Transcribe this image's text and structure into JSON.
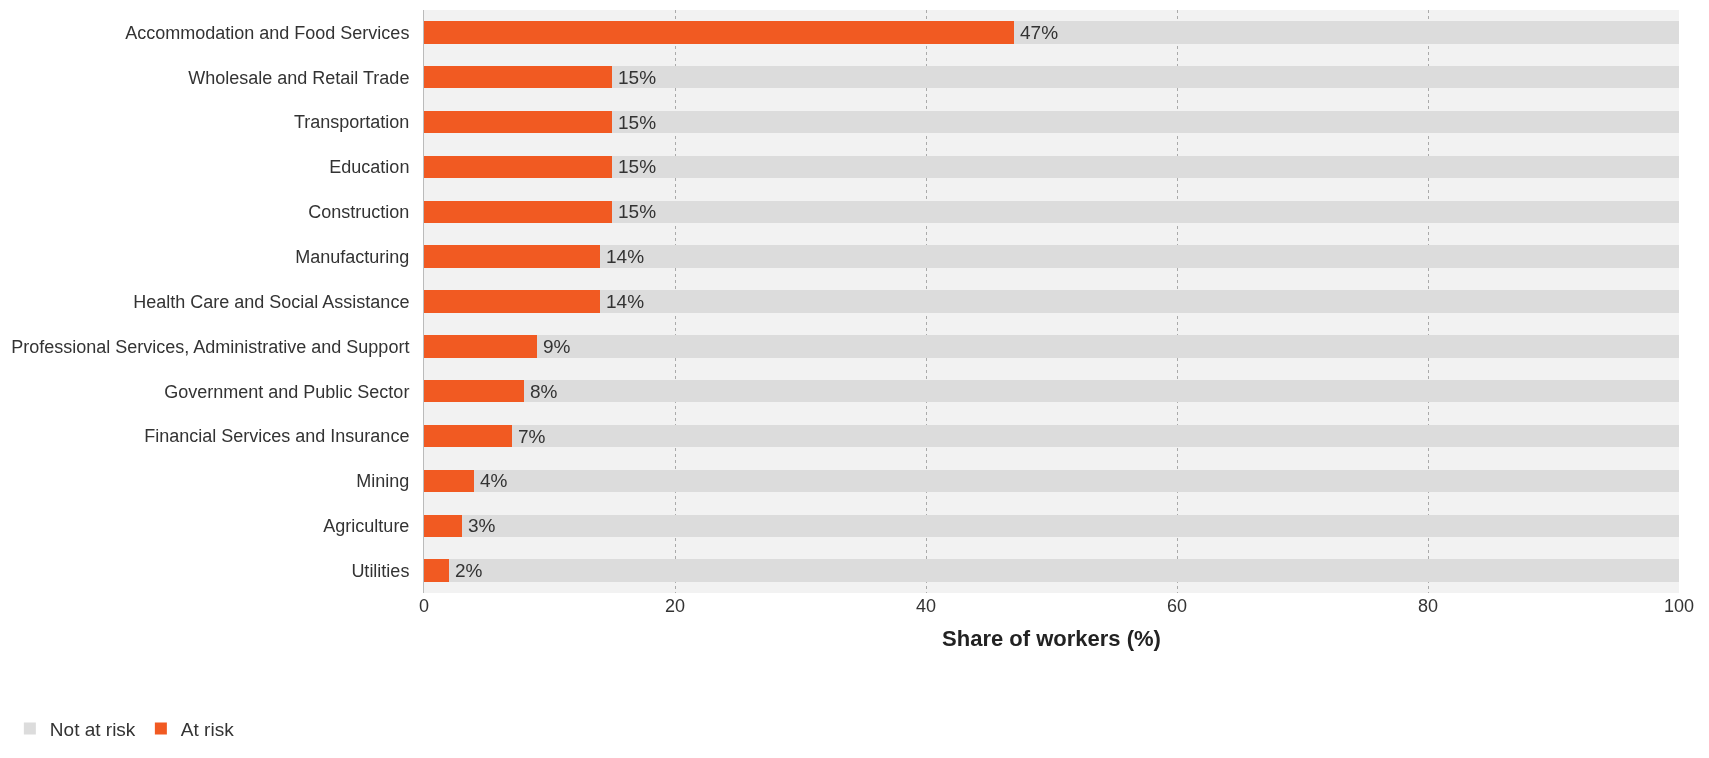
{
  "chart_data": {
    "type": "bar",
    "orientation": "horizontal",
    "stacked": true,
    "xlabel": "Share of workers (%)",
    "categories": [
      "Accommodation and Food Services",
      "Wholesale and Retail Trade",
      "Transportation",
      "Education",
      "Construction",
      "Manufacturing",
      "Health Care and Social Assistance",
      "Professional Services, Administrative and Support",
      "Government and Public Sector",
      "Financial Services and Insurance",
      "Mining",
      "Agriculture",
      "Utilities"
    ],
    "series": [
      {
        "name": "At risk",
        "color": "#f15a22",
        "values": [
          47,
          15,
          15,
          15,
          15,
          14,
          14,
          9,
          8,
          7,
          4,
          3,
          2
        ],
        "value_labels": [
          "47%",
          "15%",
          "15%",
          "15%",
          "15%",
          "14%",
          "14%",
          "9%",
          "8%",
          "7%",
          "4%",
          "3%",
          "2%"
        ]
      },
      {
        "name": "Not at risk",
        "color": "#dcdcdc",
        "values": [
          53,
          85,
          85,
          85,
          85,
          86,
          86,
          91,
          92,
          93,
          96,
          97,
          98
        ]
      }
    ],
    "xlim": [
      0,
      100
    ],
    "xticks": [
      0,
      20,
      40,
      60,
      80,
      100
    ],
    "grid": "x",
    "legend": "bottom left"
  }
}
